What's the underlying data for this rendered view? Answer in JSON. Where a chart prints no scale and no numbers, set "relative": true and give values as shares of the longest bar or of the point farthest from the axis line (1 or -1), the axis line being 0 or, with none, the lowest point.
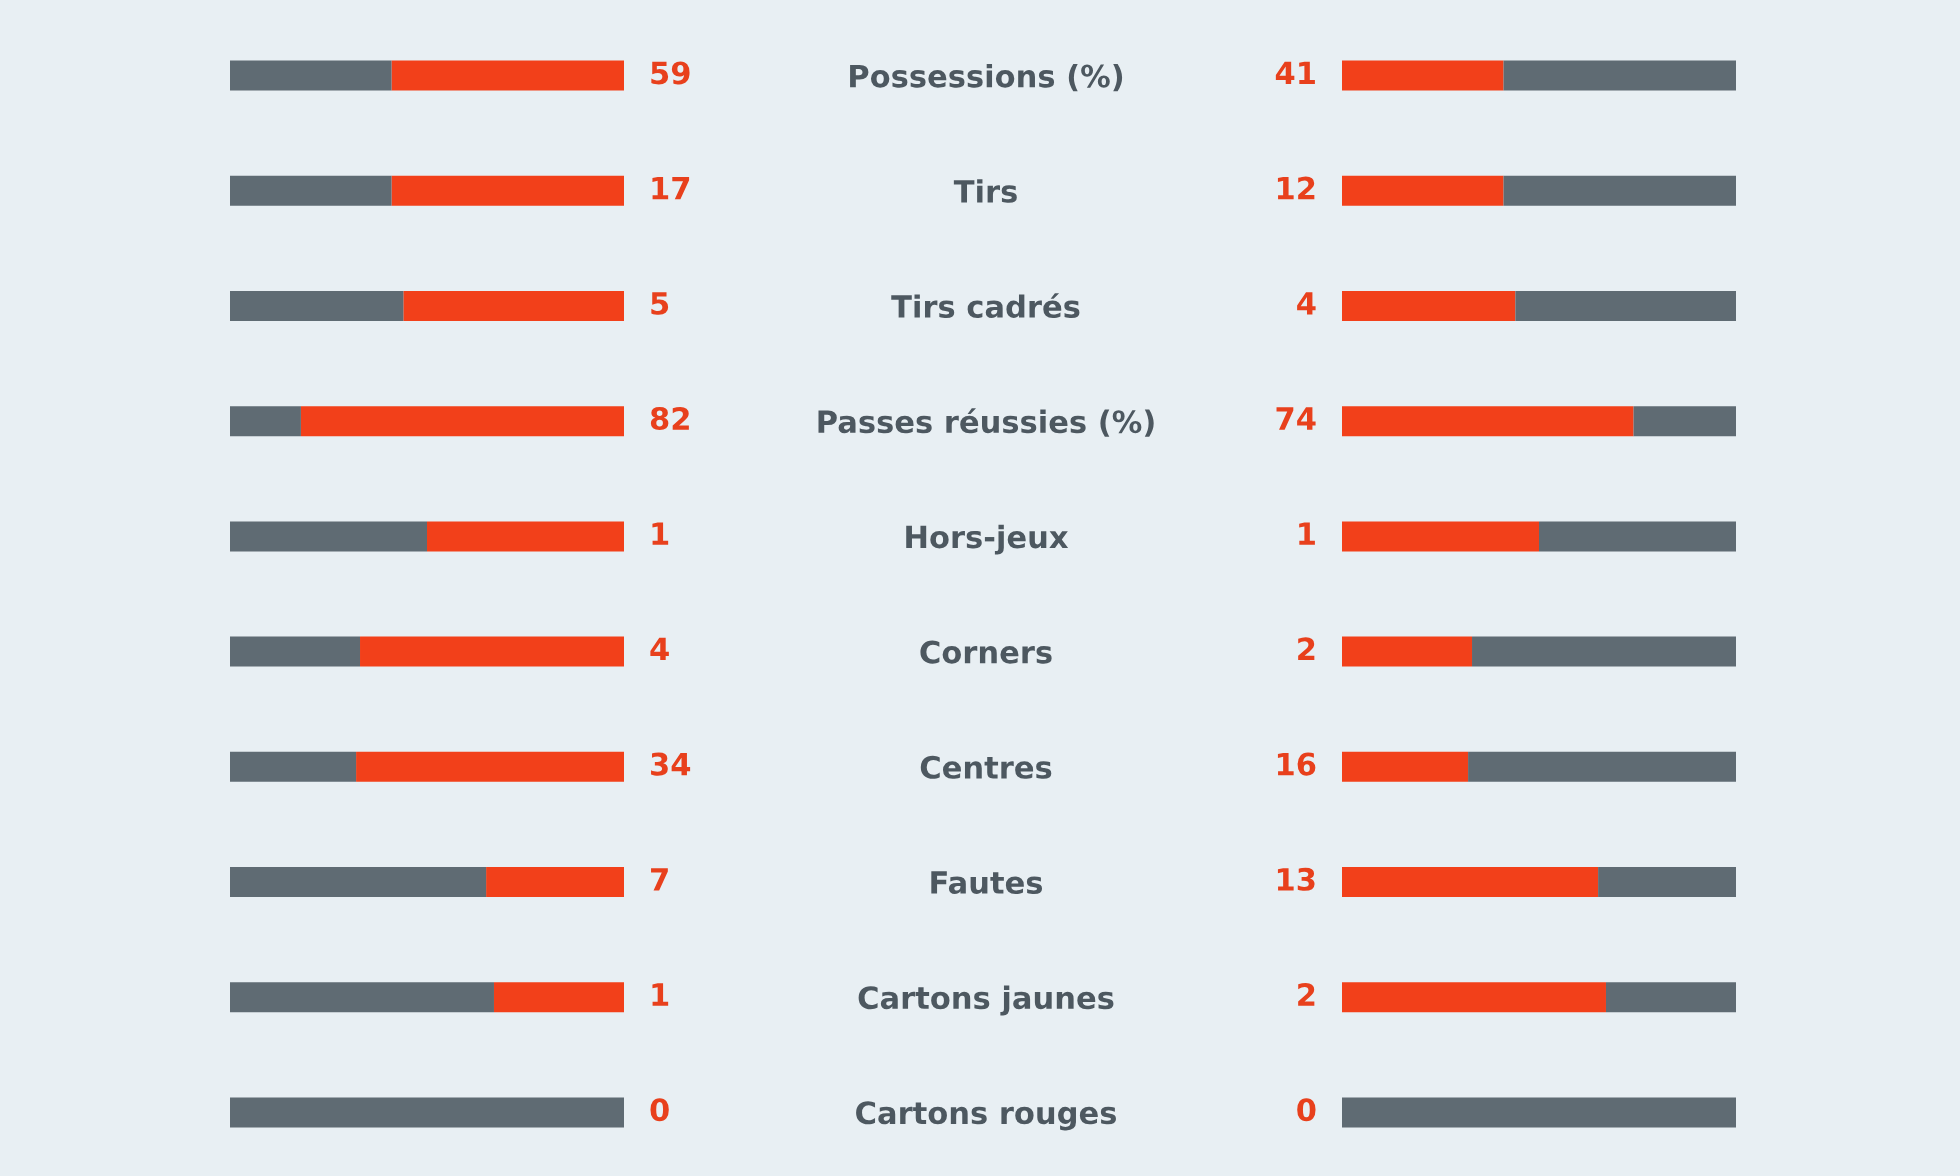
{
  "chart_data": [
    {
      "type": "bar",
      "orientation": "horizontal",
      "stacked": true,
      "relative": true,
      "categories": [
        "Possessions (%)",
        "Tirs",
        "Tirs cadrés",
        "Passes réussies (%)",
        "Hors-jeux",
        "Corners",
        "Centres",
        "Fautes",
        "Cartons jaunes",
        "Cartons rouges"
      ],
      "series": [
        {
          "color": "#f2401a",
          "values": [
            0.59,
            0.59,
            0.56,
            0.82,
            0.5,
            0.67,
            0.68,
            0.35,
            0.33,
            0
          ]
        },
        {
          "color": "#5f6b73",
          "values": [
            0.41,
            0.41,
            0.44,
            0.18,
            0.5,
            0.33,
            0.32,
            0.65,
            0.67,
            1
          ]
        }
      ],
      "annotations": [
        "59",
        "17",
        "5",
        "82",
        "1",
        "4",
        "34",
        "7",
        "1",
        "0"
      ]
    },
    {
      "type": "bar",
      "orientation": "horizontal",
      "stacked": true,
      "relative": true,
      "categories": [
        null,
        null,
        null,
        null,
        null,
        null,
        null,
        null,
        null,
        null
      ],
      "series": [
        {
          "color": "#f2401a",
          "values": [
            0.41,
            0.41,
            0.44,
            0.74,
            0.5,
            0.33,
            0.32,
            0.65,
            0.67,
            0
          ]
        },
        {
          "color": "#5f6b73",
          "values": [
            0.59,
            0.59,
            0.56,
            0.26,
            0.5,
            0.67,
            0.68,
            0.35,
            0.33,
            1
          ]
        }
      ],
      "annotations": [
        "41",
        "12",
        "4",
        "74",
        "1",
        "2",
        "16",
        "13",
        "2",
        "0"
      ]
    }
  ]
}
